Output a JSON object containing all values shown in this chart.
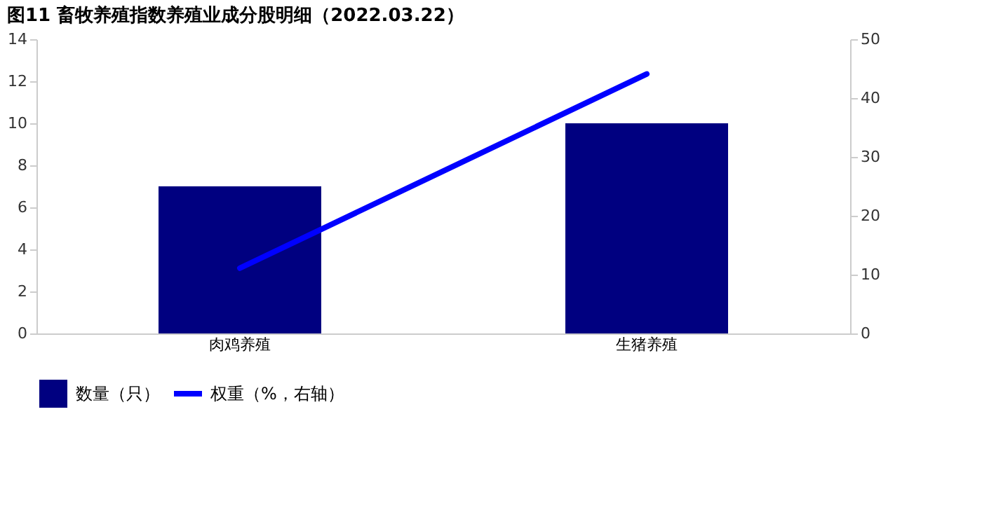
{
  "chart_data": {
    "type": "bar",
    "title": "图11 畜牧养殖指数养殖业成分股明细（2022.03.22）",
    "categories": [
      "肉鸡养殖",
      "生猪养殖"
    ],
    "series": [
      {
        "name": "数量（只）",
        "color": "#000080",
        "values": [
          7,
          10
        ]
      },
      {
        "name": "权重（%，右轴）",
        "type": "line",
        "axis": "y2",
        "color": "#0000ff",
        "values": [
          11.1,
          44.1
        ]
      }
    ],
    "ylim": [
      0,
      14
    ],
    "yticks": [
      0,
      2,
      4,
      6,
      8,
      10,
      12,
      14
    ],
    "y2lim": [
      0,
      50
    ],
    "y2ticks": [
      0,
      10,
      20,
      30,
      40,
      50
    ],
    "grid": false,
    "legend": "bottom"
  }
}
